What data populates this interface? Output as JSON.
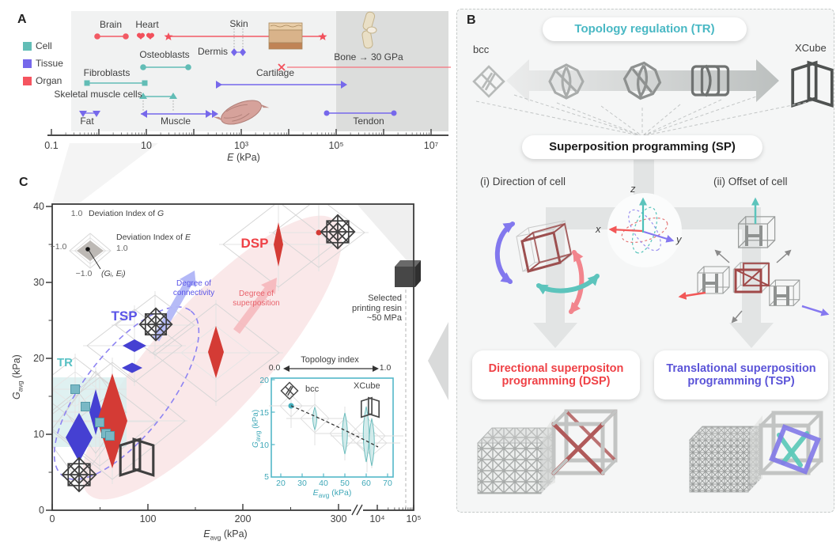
{
  "panelA": {
    "label": "A",
    "legend": [
      {
        "label": "Cell",
        "color": "#62bdb6"
      },
      {
        "label": "Tissue",
        "color": "#7668eb"
      },
      {
        "label": "Organ",
        "color": "#f5545f"
      }
    ],
    "items": {
      "brain": "Brain",
      "heart": "Heart",
      "skin": "Skin",
      "dermis": "Dermis",
      "osteoblasts": "Osteoblasts",
      "fibroblasts": "Fibroblasts",
      "cartilage": "Cartilage",
      "skeletal": "Skeletal muscle cells",
      "fat": "Fat",
      "muscle": "Muscle",
      "tendon": "Tendon",
      "bone": "Bone → 30 GPa"
    },
    "axis": {
      "ticks": [
        "0.1",
        "10",
        "10³",
        "10⁵",
        "10⁷"
      ],
      "label_sym": "E",
      "label_unit": " (kPa)"
    }
  },
  "panelB": {
    "label": "B",
    "tr_pill": "Topology regulation (TR)",
    "bcc": "bcc",
    "xcube": "XCube",
    "sp_pill": "Superposition programming (SP)",
    "direction_label": "(i) Direction of cell",
    "offset_label": "(ii) Offset of cell",
    "axis": {
      "x": "x",
      "y": "y",
      "z": "z"
    },
    "dsp_pill": {
      "line1": "Directional superpositon",
      "line2": "programming (DSP)",
      "color": "#ef4146"
    },
    "tsp_pill": {
      "line1": "Translational superposition",
      "line2": "programming (TSP)",
      "color": "#5b54d8"
    }
  },
  "panelC": {
    "label": "C",
    "ylabel": {
      "sym": "G",
      "sub": "avg",
      "unit": " (kPa)"
    },
    "xlabel": {
      "sym": "E",
      "sub": "avg",
      "unit": " (kPa)"
    },
    "yticks": [
      "40",
      "30",
      "20",
      "10",
      "0"
    ],
    "xticks": [
      "0",
      "100",
      "200",
      "300",
      "10⁴",
      "10⁵"
    ],
    "radar_legend": {
      "top_val": "1.0",
      "top_label_prefix": "Deviation Index of ",
      "top_label_sym": "G",
      "right_label_prefix": "Deviation Index of ",
      "right_label_sym": "E",
      "right_val": "1.0",
      "left_val": "−1.0",
      "bottom_val": "−1.0",
      "point_label": "(Gᵢ, Eᵢ)"
    },
    "groups": {
      "dsp": "DSP",
      "tsp": "TSP",
      "tr": "TR"
    },
    "arrows": {
      "connectivity": "Degree of\nconnectivity",
      "superposition": "Degree of\nsuperposition"
    },
    "resin_note": "Selected\nprinting resin\n~50 MPa",
    "inset": {
      "title": "Topology index",
      "min": "0.0",
      "max": "1.0",
      "bcc": "bcc",
      "xcube": "XCube",
      "yticks": [
        "20",
        "15",
        "10",
        "5"
      ],
      "xticks": [
        "20",
        "30",
        "40",
        "50",
        "60",
        "70"
      ],
      "xlabel": {
        "sym": "E",
        "sub": "avg",
        "unit": " (kPa)"
      },
      "ylabel": {
        "sym": "G",
        "sub": "avg",
        "unit": " (kPa)"
      }
    }
  },
  "chart_data": [
    {
      "type": "scatter",
      "name": "Panel A - stiffness ranges of cells, tissues, organs",
      "xscale": "log",
      "xlabel": "E (kPa)",
      "xlim": [
        0.1,
        10000000
      ],
      "series": [
        {
          "name": "Brain",
          "group": "Organ",
          "range_kPa": [
            1,
            4
          ]
        },
        {
          "name": "Heart",
          "group": "Organ",
          "range_kPa": [
            9,
            12
          ]
        },
        {
          "name": "Skin",
          "group": "Organ",
          "range_kPa": [
            30,
            100000
          ]
        },
        {
          "name": "Dermis",
          "group": "Tissue",
          "range_kPa": [
            800,
            1300
          ]
        },
        {
          "name": "Osteoblasts",
          "group": "Cell",
          "range_kPa": [
            10,
            30
          ]
        },
        {
          "name": "Fibroblasts",
          "group": "Cell",
          "range_kPa": [
            0.6,
            10
          ]
        },
        {
          "name": "Cartilage",
          "group": "Tissue",
          "range_kPa": [
            60,
            30000
          ]
        },
        {
          "name": "Skeletal muscle cells",
          "group": "Cell",
          "range_kPa": [
            8,
            20
          ]
        },
        {
          "name": "Fat",
          "group": "Tissue",
          "range_kPa": [
            0.45,
            0.9
          ]
        },
        {
          "name": "Muscle",
          "group": "Tissue",
          "range_kPa": [
            8,
            60
          ]
        },
        {
          "name": "Tendon",
          "group": "Tissue",
          "range_kPa": [
            100000,
            2000000
          ]
        },
        {
          "name": "Bone",
          "group": "Organ",
          "range_kPa": [
            4000,
            30000000
          ],
          "note": "extends to 30 GPa"
        }
      ]
    },
    {
      "type": "scatter",
      "name": "Panel C - Gavg vs Eavg of programmed lattices",
      "xlabel": "Eavg (kPa)",
      "ylabel": "Gavg (kPa)",
      "ylim": [
        0,
        40
      ],
      "xlim_note": "0-300 linear, axis break, 10^4-10^5 log",
      "series": [
        {
          "name": "TR (topology regulation)",
          "marker": "square",
          "color": "#79b8c5",
          "points": [
            [
              25,
              16
            ],
            [
              35,
              13.7
            ],
            [
              50,
              11.6
            ],
            [
              57,
              10.1
            ],
            [
              60,
              9.9
            ]
          ]
        },
        {
          "name": "TSP (translational superposition)",
          "marker": "diamond",
          "color": "#4540d2",
          "points": [
            [
              28,
              9.5
            ],
            [
              46,
              12.8
            ],
            [
              84,
              18.7
            ],
            [
              86,
              21.9
            ]
          ]
        },
        {
          "name": "DSP (directional superposition)",
          "marker": "diamond",
          "color": "#d43b35",
          "points": [
            [
              63,
              11.9
            ],
            [
              172,
              20.7
            ],
            [
              236,
              34.9
            ],
            [
              278,
              36.5
            ]
          ]
        }
      ],
      "reference": {
        "label": "Selected printing resin",
        "value": "~50 MPa"
      }
    },
    {
      "type": "scatter",
      "name": "Panel C inset - topology index sweep bcc to XCube",
      "xlabel": "Eavg (kPa)",
      "ylabel": "Gavg (kPa)",
      "xlim": [
        20,
        70
      ],
      "ylim": [
        5,
        20
      ],
      "series": [
        {
          "name": "Topology sweep",
          "color": "#45aebc",
          "points": [
            [
              25,
              16.2
            ],
            [
              36,
              14.2
            ],
            [
              50,
              11.9
            ],
            [
              60,
              10.4
            ],
            [
              62,
              9.9
            ]
          ]
        }
      ],
      "topology_index": [
        0.0,
        1.0
      ]
    }
  ]
}
